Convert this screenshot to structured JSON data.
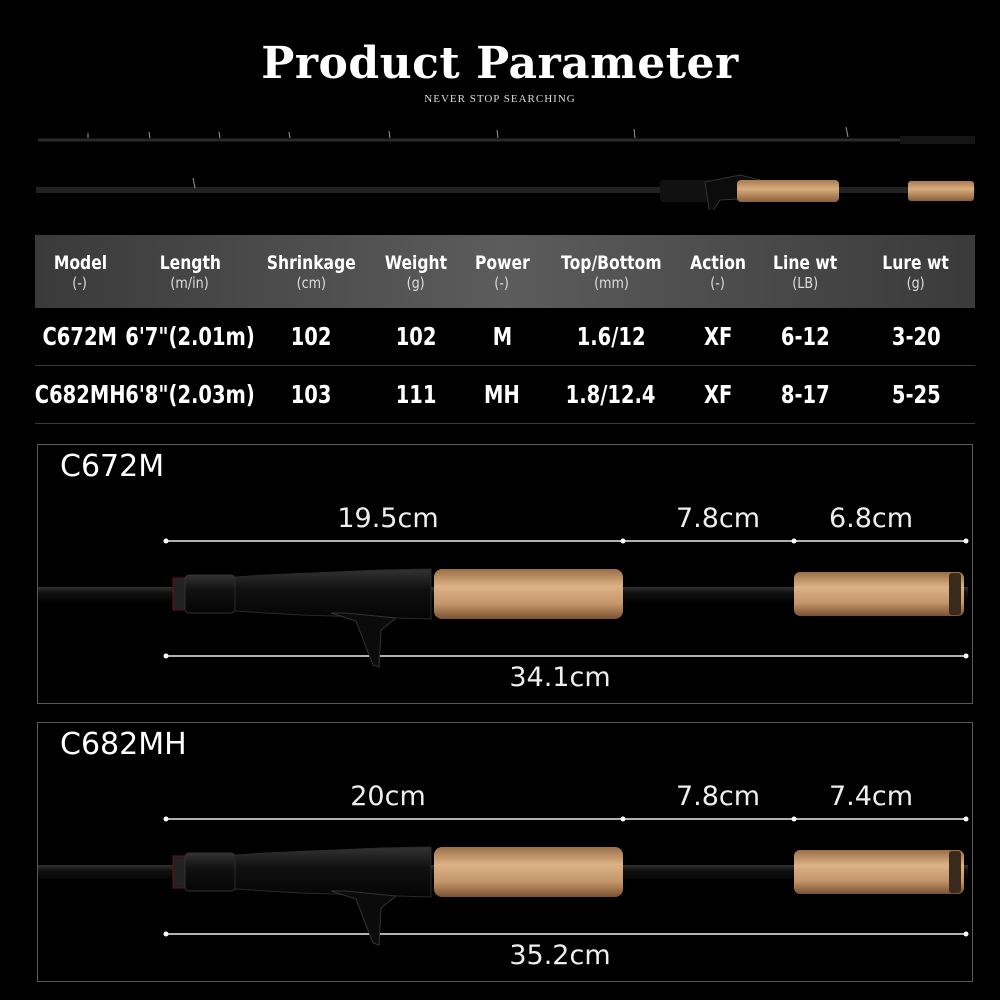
{
  "header": {
    "title": "Product Parameter",
    "subtitle": "NEVER STOP SEARCHING"
  },
  "table": {
    "columns": [
      {
        "name": "Model",
        "unit": "(-)"
      },
      {
        "name": "Length",
        "unit": "(m/in)"
      },
      {
        "name": "Shrinkage",
        "unit": "(cm)"
      },
      {
        "name": "Weight",
        "unit": "(g)"
      },
      {
        "name": "Power",
        "unit": "(-)"
      },
      {
        "name": "Top/Bottom",
        "unit": "(mm)"
      },
      {
        "name": "Action",
        "unit": "(-)"
      },
      {
        "name": "Line wt",
        "unit": "(LB)"
      },
      {
        "name": "Lure wt",
        "unit": "(g)"
      }
    ],
    "rows": [
      [
        "C672M",
        "6'7\"(2.01m)",
        "102",
        "102",
        "M",
        "1.6/12",
        "XF",
        "6-12",
        "3-20"
      ],
      [
        "C682MH",
        "6'8\"(2.03m)",
        "103",
        "111",
        "MH",
        "1.8/12.4",
        "XF",
        "8-17",
        "5-25"
      ]
    ]
  },
  "panels": [
    {
      "model": "C672M",
      "seg1": "19.5cm",
      "seg2": "7.8cm",
      "seg3": "6.8cm",
      "total": "34.1cm"
    },
    {
      "model": "C682MH",
      "seg1": "20cm",
      "seg2": "7.8cm",
      "seg3": "7.4cm",
      "total": "35.2cm"
    }
  ],
  "colors": {
    "background": "#000000",
    "cork": "#c89a6a",
    "table_header": "#4a4a4a"
  }
}
